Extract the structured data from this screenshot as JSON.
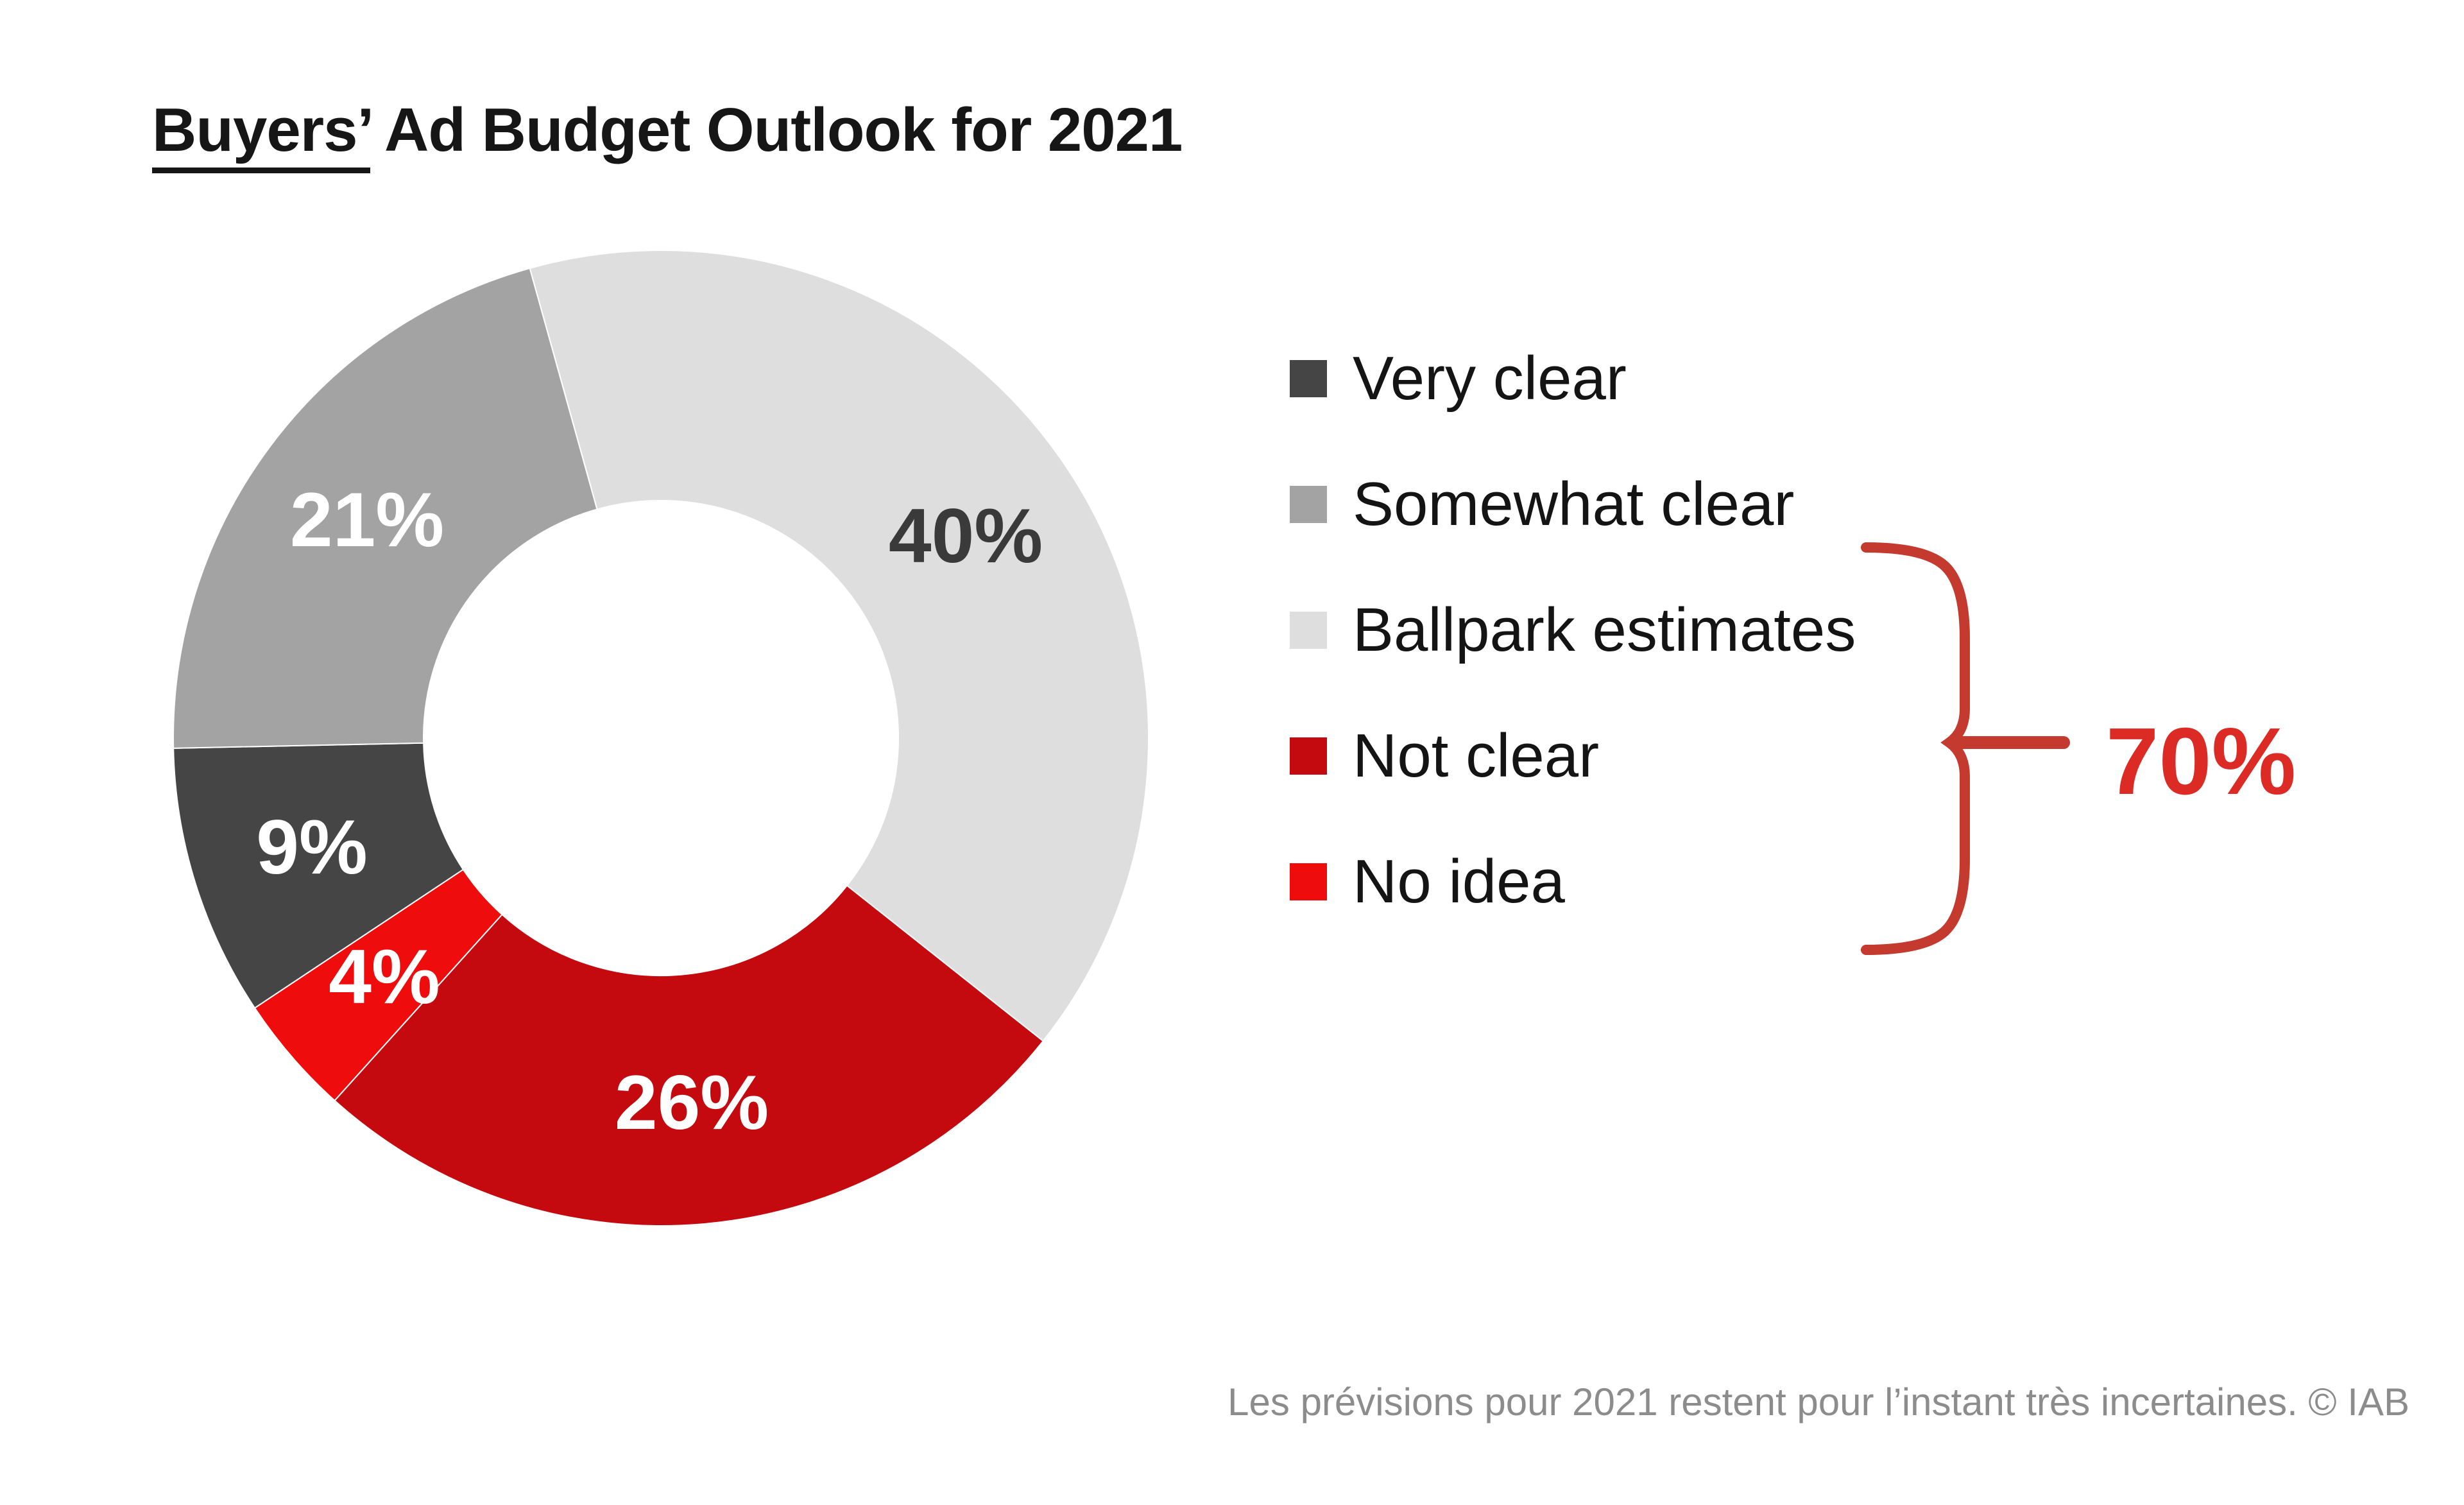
{
  "title": {
    "underlined": "Buyers’",
    "rest": " Ad Budget Outlook for 2021"
  },
  "chart_data": {
    "type": "pie",
    "subtype": "donut",
    "title": "Buyers’ Ad Budget Outlook for 2021",
    "direction": "clockwise",
    "start_angle_deg": -15.6,
    "inner_radius_ratio": 0.4868,
    "label_radius_ratio": 0.75,
    "segments": [
      {
        "label": "Ballpark estimates",
        "value": 40,
        "display": "40%",
        "color": "#dedede",
        "label_color": "#3a3a3a"
      },
      {
        "label": "Not clear",
        "value": 26,
        "display": "26%",
        "color": "#c40a0e",
        "label_color": "#ffffff"
      },
      {
        "label": "No idea",
        "value": 4,
        "display": "4%",
        "color": "#ee0c0c",
        "label_color": "#ffffff"
      },
      {
        "label": "Very clear",
        "value": 9,
        "display": "9%",
        "color": "#454545",
        "label_color": "#ffffff"
      },
      {
        "label": "Somewhat clear",
        "value": 21,
        "display": "21%",
        "color": "#a3a3a3",
        "label_color": "#ffffff"
      }
    ],
    "legend": {
      "position": "right",
      "items_order": [
        "Very clear",
        "Somewhat clear",
        "Ballpark estimates",
        "Not clear",
        "No idea"
      ]
    },
    "annotation": {
      "text": "70%",
      "color": "#dc2a25",
      "brace_color": "#c43a2e",
      "groups": [
        "Ballpark estimates",
        "Not clear",
        "No idea"
      ]
    }
  },
  "caption": "Les prévisions pour 2021 restent pour l’instant très incertaines. © IAB"
}
